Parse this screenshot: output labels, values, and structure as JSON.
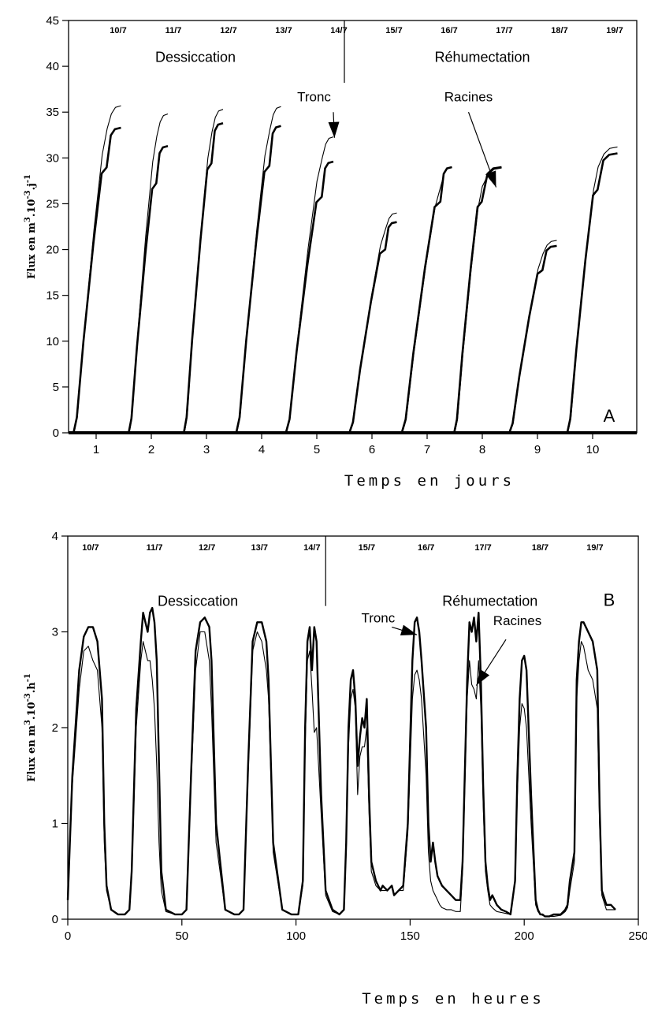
{
  "chart_data": [
    {
      "type": "line",
      "panel_label": "A",
      "xlabel": "Temps en jours",
      "ylabel": "Flux en m3.10-3.j-1",
      "ylabel_parts": {
        "base": "Flux en m",
        "sup1": "3",
        "mid": ".10",
        "sup2": "-3",
        "tail": ".j",
        "sup3": "-1"
      },
      "xlim": [
        0.5,
        10.8
      ],
      "ylim": [
        0,
        45
      ],
      "x_ticks": [
        1,
        2,
        3,
        4,
        5,
        6,
        7,
        8,
        9,
        10
      ],
      "y_ticks": [
        0,
        5,
        10,
        15,
        20,
        25,
        30,
        35,
        40,
        45
      ],
      "grid": false,
      "dates": [
        "10/7",
        "11/7",
        "12/7",
        "13/7",
        "14/7",
        "15/7",
        "16/7",
        "17/7",
        "18/7",
        "19/7"
      ],
      "phase_divider_x": 5.5,
      "phases": [
        {
          "label": "Dessiccation",
          "x": 2.8,
          "y": 40.5
        },
        {
          "label": "Réhumectation",
          "x": 8.0,
          "y": 40.5
        }
      ],
      "annotations": [
        {
          "label": "Tronc",
          "text_x": 4.95,
          "text_y": 36.2,
          "arrow_from": [
            5.3,
            35.0
          ],
          "arrow_to": [
            5.32,
            32.2
          ]
        },
        {
          "label": "Racines",
          "text_x": 7.75,
          "text_y": 36.2,
          "arrow_from": [
            7.75,
            35.0
          ],
          "arrow_to": [
            8.25,
            26.8
          ]
        }
      ],
      "daily_curves": [
        {
          "day": 1,
          "start": 0.6,
          "rise_end": 1.2,
          "end": 1.45,
          "thin_max": 35.7,
          "thick_max": 33.3
        },
        {
          "day": 2,
          "start": 1.6,
          "rise_end": 2.1,
          "end": 2.3,
          "thin_max": 34.8,
          "thick_max": 31.3
        },
        {
          "day": 3,
          "start": 2.6,
          "rise_end": 3.1,
          "end": 3.3,
          "thin_max": 35.3,
          "thick_max": 33.8
        },
        {
          "day": 4,
          "start": 3.55,
          "rise_end": 4.15,
          "end": 4.35,
          "thin_max": 35.6,
          "thick_max": 33.5
        },
        {
          "day": 5,
          "start": 4.45,
          "rise_end": 5.1,
          "end": 5.3,
          "thin_max": 32.3,
          "thick_max": 29.6
        },
        {
          "day": 6,
          "start": 5.6,
          "rise_end": 6.25,
          "end": 6.45,
          "thin_max": 24.0,
          "thick_max": 23.0
        },
        {
          "day": 7,
          "start": 6.55,
          "rise_end": 7.25,
          "end": 7.45,
          "thin_max": 29.0,
          "thick_max": 29.0
        },
        {
          "day": 8,
          "start": 7.5,
          "rise_end": 8.0,
          "end": 8.35,
          "thin_max": 28.9,
          "thick_max": 29.0
        },
        {
          "day": 9,
          "start": 8.5,
          "rise_end": 9.1,
          "end": 9.35,
          "thin_max": 21.0,
          "thick_max": 20.4
        },
        {
          "day": 10,
          "start": 9.55,
          "rise_end": 10.1,
          "end": 10.45,
          "thin_max": 31.2,
          "thick_max": 30.5
        }
      ]
    },
    {
      "type": "line",
      "panel_label": "B",
      "xlabel": "Temps en heures",
      "ylabel": "Flux en m3.10-3.h-1",
      "ylabel_parts": {
        "base": "Flux en m",
        "sup1": "3",
        "mid": ".10",
        "sup2": "-3",
        "tail": ".h",
        "sup3": "-1"
      },
      "xlim": [
        0,
        250
      ],
      "ylim": [
        0,
        4
      ],
      "x_ticks": [
        0,
        50,
        100,
        150,
        200,
        250
      ],
      "y_ticks": [
        0,
        1,
        2,
        3,
        4
      ],
      "grid": false,
      "dates": [
        "10/7",
        "11/7",
        "12/7",
        "13/7",
        "14/7",
        "15/7",
        "16/7",
        "17/7",
        "18/7",
        "19/7"
      ],
      "date_positions": [
        10,
        38,
        61,
        84,
        107,
        131,
        157,
        182,
        207,
        231
      ],
      "phase_divider_x": 113,
      "phases": [
        {
          "label": "Dessiccation",
          "x": 57,
          "y": 3.27
        },
        {
          "label": "Réhumectation",
          "x": 185,
          "y": 3.27
        }
      ],
      "annotations": [
        {
          "label": "Tronc",
          "text_x": 136,
          "text_y": 3.1,
          "arrow_from": [
            142,
            3.05
          ],
          "arrow_to": [
            153,
            2.97
          ]
        },
        {
          "label": "Racines",
          "text_x": 197,
          "text_y": 3.07,
          "arrow_from": [
            192,
            2.92
          ],
          "arrow_to": [
            179,
            2.44
          ]
        }
      ],
      "series": [
        {
          "name": "Tronc",
          "stroke": "thick",
          "x": [
            0,
            2,
            5,
            7,
            9,
            11,
            13,
            15,
            16,
            17,
            19,
            22,
            25,
            27,
            28,
            30,
            32,
            33,
            34,
            35,
            36,
            37,
            38,
            39,
            40,
            41,
            43,
            47,
            50,
            52,
            54,
            56,
            58,
            60,
            62,
            63,
            65,
            69,
            73,
            75,
            77,
            79,
            81,
            83,
            85,
            87,
            88,
            90,
            94,
            98,
            101,
            103,
            104,
            105,
            106,
            107,
            108,
            109,
            111,
            113,
            116,
            119,
            121,
            122,
            123,
            124,
            125,
            126,
            127,
            128,
            129,
            130,
            131,
            132,
            133,
            135,
            137,
            138,
            140,
            142,
            143,
            145,
            147,
            149,
            151,
            152,
            153,
            154,
            155,
            157,
            158,
            159,
            160,
            161,
            162,
            163,
            164,
            166,
            168,
            170,
            172,
            173,
            175,
            176,
            177,
            178,
            179,
            180,
            181,
            182,
            183,
            184,
            185,
            186,
            187,
            188,
            190,
            192,
            194,
            196,
            197,
            198,
            199,
            200,
            201,
            203,
            205,
            206,
            207,
            208,
            209,
            211,
            213,
            216,
            218,
            219,
            220,
            222,
            223,
            224,
            225,
            226,
            228,
            230,
            232,
            233,
            234,
            236,
            238,
            240
          ],
          "y": [
            0.2,
            1.5,
            2.6,
            2.95,
            3.05,
            3.05,
            2.9,
            2.3,
            1.0,
            0.35,
            0.1,
            0.05,
            0.05,
            0.1,
            0.5,
            2.2,
            2.9,
            3.2,
            3.1,
            3.0,
            3.2,
            3.25,
            3.1,
            2.7,
            1.6,
            0.5,
            0.1,
            0.05,
            0.05,
            0.1,
            1.5,
            2.8,
            3.1,
            3.15,
            3.05,
            2.7,
            1.0,
            0.1,
            0.05,
            0.05,
            0.1,
            1.6,
            2.9,
            3.1,
            3.1,
            2.9,
            2.5,
            0.8,
            0.1,
            0.05,
            0.05,
            0.4,
            2.0,
            2.9,
            3.05,
            2.6,
            3.05,
            2.9,
            1.3,
            0.3,
            0.1,
            0.05,
            0.1,
            0.8,
            2.0,
            2.5,
            2.6,
            2.3,
            1.6,
            1.9,
            2.1,
            2.0,
            2.3,
            1.3,
            0.6,
            0.4,
            0.3,
            0.35,
            0.3,
            0.35,
            0.25,
            0.3,
            0.35,
            1.0,
            2.7,
            3.1,
            3.15,
            3.0,
            2.7,
            2.0,
            1.0,
            0.6,
            0.8,
            0.6,
            0.45,
            0.4,
            0.35,
            0.3,
            0.25,
            0.2,
            0.2,
            0.6,
            2.5,
            3.1,
            3.0,
            3.15,
            2.9,
            3.2,
            2.5,
            1.4,
            0.6,
            0.35,
            0.2,
            0.25,
            0.2,
            0.15,
            0.1,
            0.08,
            0.05,
            0.4,
            1.5,
            2.3,
            2.7,
            2.75,
            2.6,
            1.3,
            0.2,
            0.1,
            0.05,
            0.05,
            0.03,
            0.03,
            0.05,
            0.05,
            0.1,
            0.15,
            0.4,
            0.7,
            2.5,
            2.9,
            3.1,
            3.1,
            3.0,
            2.9,
            2.6,
            1.2,
            0.3,
            0.15,
            0.15,
            0.1
          ]
        },
        {
          "name": "Racines",
          "stroke": "thin",
          "x": [
            0,
            2,
            5,
            7,
            9,
            11,
            13,
            15,
            16,
            17,
            19,
            22,
            25,
            27,
            28,
            30,
            32,
            33,
            34,
            35,
            36,
            37,
            38,
            39,
            40,
            41,
            43,
            47,
            50,
            52,
            54,
            56,
            58,
            60,
            62,
            63,
            65,
            69,
            73,
            75,
            77,
            79,
            81,
            83,
            85,
            87,
            88,
            90,
            94,
            98,
            101,
            103,
            104,
            105,
            106,
            107,
            108,
            109,
            111,
            113,
            116,
            119,
            121,
            122,
            123,
            124,
            125,
            126,
            127,
            128,
            129,
            130,
            131,
            132,
            133,
            135,
            137,
            138,
            140,
            142,
            143,
            145,
            147,
            149,
            151,
            152,
            153,
            154,
            155,
            157,
            158,
            159,
            160,
            161,
            162,
            163,
            164,
            166,
            168,
            170,
            172,
            173,
            175,
            176,
            177,
            178,
            179,
            180,
            181,
            182,
            183,
            184,
            185,
            186,
            187,
            188,
            190,
            192,
            194,
            196,
            197,
            198,
            199,
            200,
            201,
            203,
            205,
            206,
            207,
            208,
            209,
            211,
            213,
            216,
            218,
            219,
            220,
            222,
            223,
            224,
            225,
            226,
            228,
            230,
            232,
            233,
            234,
            236,
            238,
            240
          ],
          "y": [
            0.2,
            1.4,
            2.4,
            2.8,
            2.85,
            2.7,
            2.6,
            2.0,
            0.8,
            0.3,
            0.1,
            0.05,
            0.05,
            0.1,
            0.45,
            2.0,
            2.7,
            2.9,
            2.8,
            2.7,
            2.7,
            2.5,
            2.2,
            1.6,
            0.8,
            0.3,
            0.08,
            0.05,
            0.05,
            0.1,
            1.4,
            2.6,
            3.0,
            3.0,
            2.7,
            2.2,
            0.8,
            0.1,
            0.05,
            0.05,
            0.1,
            1.5,
            2.8,
            3.0,
            2.9,
            2.6,
            2.3,
            0.7,
            0.1,
            0.05,
            0.05,
            0.35,
            1.8,
            2.7,
            2.8,
            2.4,
            1.95,
            2.0,
            1.1,
            0.25,
            0.08,
            0.05,
            0.1,
            0.7,
            1.8,
            2.3,
            2.4,
            2.2,
            1.3,
            1.7,
            1.8,
            1.8,
            2.0,
            1.1,
            0.5,
            0.35,
            0.3,
            0.3,
            0.3,
            0.35,
            0.25,
            0.3,
            0.3,
            0.9,
            2.3,
            2.55,
            2.6,
            2.5,
            2.3,
            1.5,
            0.7,
            0.4,
            0.3,
            0.25,
            0.2,
            0.15,
            0.12,
            0.1,
            0.1,
            0.08,
            0.08,
            0.5,
            2.3,
            2.7,
            2.45,
            2.4,
            2.3,
            2.7,
            2.2,
            1.2,
            0.5,
            0.3,
            0.15,
            0.12,
            0.1,
            0.08,
            0.07,
            0.06,
            0.05,
            0.4,
            1.3,
            2.0,
            2.25,
            2.2,
            2.0,
            1.0,
            0.15,
            0.08,
            0.05,
            0.04,
            0.03,
            0.03,
            0.03,
            0.04,
            0.08,
            0.12,
            0.3,
            0.6,
            2.3,
            2.7,
            2.9,
            2.85,
            2.6,
            2.5,
            2.2,
            1.0,
            0.25,
            0.1,
            0.1,
            0.1
          ]
        }
      ]
    }
  ]
}
